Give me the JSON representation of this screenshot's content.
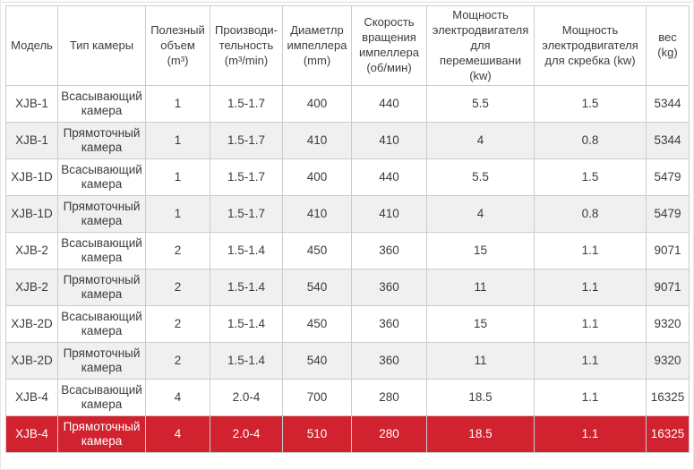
{
  "colors": {
    "highlight": "#d0232f",
    "stripe": "#f0f0f0",
    "border": "#cccccc",
    "text": "#3c3c3c",
    "highlight_text": "#ffffff"
  },
  "table": {
    "column_keys": [
      "model",
      "camera-type",
      "useful-volume",
      "capacity",
      "impeller-diameter",
      "impeller-speed",
      "mixing-motor-power",
      "scraper-motor-power",
      "weight"
    ],
    "headers": [
      "Модель",
      "Тип камеры",
      "Полезный объем (m³)",
      "Производи-тельность (m³/min)",
      "Диаметлр импеллера (mm)",
      "Скорость вращения импеллера (об/мин)",
      "Мощность электродвигателя для перемешивани (kw)",
      "Мощность электродвигателя для скребка (kw)",
      "вес (kg)"
    ],
    "rows": [
      [
        "XJB-1",
        "Всасывающий камера",
        "1",
        "1.5-1.7",
        "400",
        "440",
        "5.5",
        "1.5",
        "5344"
      ],
      [
        "XJB-1",
        "Прямоточный камера",
        "1",
        "1.5-1.7",
        "410",
        "410",
        "4",
        "0.8",
        "5344"
      ],
      [
        "XJB-1D",
        "Всасывающий камера",
        "1",
        "1.5-1.7",
        "400",
        "440",
        "5.5",
        "1.5",
        "5479"
      ],
      [
        "XJB-1D",
        "Прямоточный камера",
        "1",
        "1.5-1.7",
        "410",
        "410",
        "4",
        "0.8",
        "5479"
      ],
      [
        "XJB-2",
        "Всасывающий камера",
        "2",
        "1.5-1.4",
        "450",
        "360",
        "15",
        "1.1",
        "9071"
      ],
      [
        "XJB-2",
        "Прямоточный камера",
        "2",
        "1.5-1.4",
        "540",
        "360",
        "11",
        "1.1",
        "9071"
      ],
      [
        "XJB-2D",
        "Всасывающий камера",
        "2",
        "1.5-1.4",
        "450",
        "360",
        "15",
        "1.1",
        "9320"
      ],
      [
        "XJB-2D",
        "Прямоточный камера",
        "2",
        "1.5-1.4",
        "540",
        "360",
        "11",
        "1.1",
        "9320"
      ],
      [
        "XJB-4",
        "Всасывающий камера",
        "4",
        "2.0-4",
        "700",
        "280",
        "18.5",
        "1.1",
        "16325"
      ],
      [
        "XJB-4",
        "Прямоточный камера",
        "4",
        "2.0-4",
        "510",
        "280",
        "18.5",
        "1.1",
        "16325"
      ]
    ],
    "highlighted_row_index": 9
  }
}
